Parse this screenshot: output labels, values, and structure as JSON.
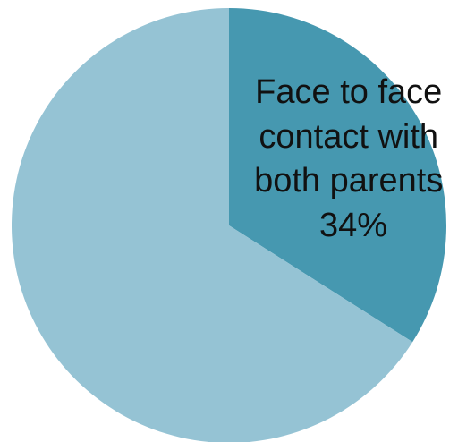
{
  "chart_data": {
    "type": "pie",
    "slices": [
      {
        "label_lines": [
          "Face to face",
          "contact with",
          "both parents"
        ],
        "value_label": "34%",
        "value": 34,
        "color": "#4698b0"
      },
      {
        "label_lines": [],
        "value_label": "",
        "value": 66,
        "color": "#95c3d4"
      }
    ]
  }
}
